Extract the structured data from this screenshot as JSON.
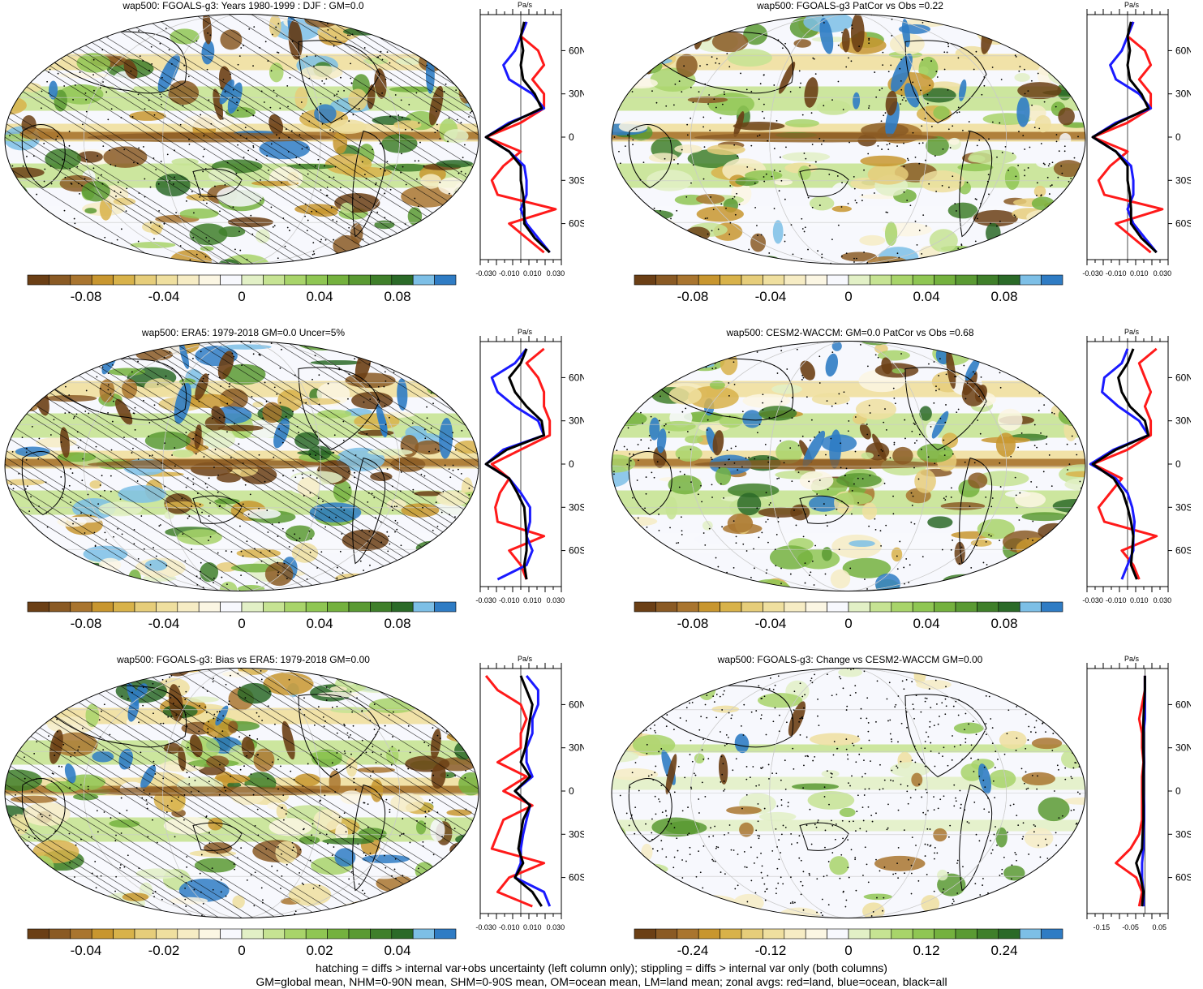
{
  "palette": [
    "#6b3f15",
    "#8a5a24",
    "#a9752f",
    "#c8962f",
    "#d8b24a",
    "#e6cd7a",
    "#efdf9f",
    "#f6ecc4",
    "#fbf6e3",
    "#f7f8fd",
    "#e2f0c6",
    "#c6e393",
    "#a8d46a",
    "#8fc653",
    "#74b13e",
    "#5a9a33",
    "#3f7f2a",
    "#2b6a28",
    "#7dbfe6",
    "#2f7cc4"
  ],
  "footer": {
    "line1": "hatching = diffs > internal var+obs uncertainty (left column only); stippling = diffs > internal var only (both columns)",
    "line2": "GM=global mean, NHM=0-90N mean, SHM=0-90S mean, OM=ocean mean, LM=land mean; zonal avgs: red=land, blue=ocean, black=all"
  },
  "panels": [
    {
      "title": "wap500: FGOALS-g3: Years 1980-1999 : DJF : GM=0.0",
      "colorbar_ticks": [
        "-0.08",
        "-0.04",
        "0",
        "0.04",
        "0.08"
      ],
      "zonal_unit": "Pa/s",
      "lat_labels": [
        "60N",
        "30N",
        "0",
        "30S",
        "60S"
      ],
      "zonal_x_ticks": [
        "-0.030",
        "-0.010",
        "0.010",
        "0.030"
      ],
      "hatching": true,
      "stippling": true
    },
    {
      "title": "wap500: FGOALS-g3 PatCor vs Obs =0.22",
      "colorbar_ticks": [
        "-0.08",
        "-0.04",
        "0",
        "0.04",
        "0.08"
      ],
      "zonal_unit": "Pa/s",
      "lat_labels": [
        "60N",
        "30N",
        "0",
        "30S",
        "60S"
      ],
      "zonal_x_ticks": [
        "-0.030",
        "-0.010",
        "0.010",
        "0.030"
      ],
      "hatching": false,
      "stippling": true
    },
    {
      "title": "wap500: ERA5: 1979-2018 GM=0.0 Uncer=5%",
      "colorbar_ticks": [
        "-0.08",
        "-0.04",
        "0",
        "0.04",
        "0.08"
      ],
      "zonal_unit": "Pa/s",
      "lat_labels": [
        "60N",
        "30N",
        "0",
        "30S",
        "60S"
      ],
      "zonal_x_ticks": [
        "-0.030",
        "-0.010",
        "0.010",
        "0.030"
      ],
      "hatching": true,
      "stippling": true
    },
    {
      "title": "wap500: CESM2-WACCM: GM=0.0 PatCor vs Obs =0.68",
      "colorbar_ticks": [
        "-0.08",
        "-0.04",
        "0",
        "0.04",
        "0.08"
      ],
      "zonal_unit": "Pa/s",
      "lat_labels": [
        "60N",
        "30N",
        "0",
        "30S",
        "60S"
      ],
      "zonal_x_ticks": [
        "-0.030",
        "-0.010",
        "0.010",
        "0.030"
      ],
      "hatching": false,
      "stippling": true
    },
    {
      "title": "wap500: FGOALS-g3: Bias vs ERA5: 1979-2018 GM=0.00",
      "colorbar_ticks": [
        "-0.04",
        "-0.02",
        "0",
        "0.02",
        "0.04"
      ],
      "zonal_unit": "Pa/s",
      "lat_labels": [
        "60N",
        "30N",
        "0",
        "30S",
        "60S"
      ],
      "zonal_x_ticks": [
        "-0.030",
        "-0.010",
        "0.010",
        "0.030"
      ],
      "hatching": true,
      "stippling": true
    },
    {
      "title": "wap500: FGOALS-g3: Change vs CESM2-WACCM GM=0.00",
      "colorbar_ticks": [
        "-0.24",
        "-0.12",
        "0",
        "0.12",
        "0.24"
      ],
      "zonal_unit": "Pa/s",
      "lat_labels": [
        "60N",
        "30N",
        "0",
        "30S",
        "60S"
      ],
      "zonal_x_ticks": [
        "-0.15",
        "-0.05",
        "0.05"
      ],
      "hatching": false,
      "stippling": true
    }
  ],
  "chart_data": [
    {
      "type": "heatmap",
      "title": "wap500: FGOALS-g3: Years 1980-1999 : DJF : GM=0.0",
      "colorbar": {
        "ticks": [
          -0.08,
          -0.04,
          0,
          0.04,
          0.08
        ],
        "range": [
          -0.11,
          0.11
        ]
      },
      "zonal": {
        "unit": "Pa/s",
        "xlim": [
          -0.035,
          0.035
        ],
        "lat": [
          -80,
          -70,
          -60,
          -50,
          -40,
          -30,
          -20,
          -10,
          0,
          10,
          20,
          30,
          40,
          50,
          60,
          70,
          80
        ],
        "land": [
          0.02,
          0.005,
          -0.01,
          0.03,
          -0.02,
          -0.025,
          -0.015,
          0.0,
          -0.03,
          0.0,
          0.02,
          0.02,
          0.01,
          0.02,
          0.015,
          0.0,
          0.005
        ],
        "ocean": [
          0.025,
          0.015,
          0.005,
          0.0,
          0.005,
          0.005,
          0.003,
          -0.01,
          -0.03,
          -0.01,
          0.02,
          0.01,
          -0.01,
          -0.015,
          -0.005,
          0.0,
          0.005
        ],
        "all": [
          0.025,
          0.012,
          0.003,
          0.003,
          0.002,
          0.0,
          0.0,
          -0.01,
          -0.03,
          -0.008,
          0.018,
          0.012,
          0.002,
          0.0,
          0.002,
          0.0,
          0.003
        ]
      }
    },
    {
      "type": "heatmap",
      "title": "wap500: FGOALS-g3 PatCor vs Obs =0.22",
      "colorbar": {
        "ticks": [
          -0.08,
          -0.04,
          0,
          0.04,
          0.08
        ],
        "range": [
          -0.11,
          0.11
        ]
      },
      "zonal": {
        "unit": "Pa/s",
        "xlim": [
          -0.035,
          0.035
        ],
        "lat": [
          -80,
          -70,
          -60,
          -50,
          -40,
          -30,
          -20,
          -10,
          0,
          10,
          20,
          30,
          40,
          50,
          60,
          70,
          80
        ],
        "land": [
          0.02,
          0.005,
          -0.01,
          0.03,
          -0.02,
          -0.025,
          -0.015,
          0.0,
          -0.03,
          0.0,
          0.02,
          0.02,
          0.01,
          0.02,
          0.015,
          0.0,
          0.005
        ],
        "ocean": [
          0.025,
          0.015,
          0.005,
          0.0,
          0.005,
          0.005,
          0.003,
          -0.01,
          -0.03,
          -0.01,
          0.02,
          0.01,
          -0.01,
          -0.015,
          -0.005,
          0.0,
          0.005
        ],
        "all": [
          0.025,
          0.012,
          0.003,
          0.003,
          0.002,
          0.0,
          0.0,
          -0.01,
          -0.03,
          -0.008,
          0.018,
          0.012,
          0.002,
          0.0,
          0.002,
          0.0,
          0.003
        ]
      }
    },
    {
      "type": "heatmap",
      "title": "wap500: ERA5: 1979-2018 GM=0.0 Uncer=5%",
      "colorbar": {
        "ticks": [
          -0.08,
          -0.04,
          0,
          0.04,
          0.08
        ],
        "range": [
          -0.11,
          0.11
        ]
      },
      "zonal": {
        "unit": "Pa/s",
        "xlim": [
          -0.035,
          0.035
        ],
        "lat": [
          -80,
          -70,
          -60,
          -50,
          -40,
          -30,
          -20,
          -10,
          0,
          10,
          20,
          30,
          40,
          50,
          60,
          70,
          80
        ],
        "land": [
          0.005,
          0.0,
          -0.01,
          0.02,
          -0.02,
          -0.022,
          -0.018,
          -0.01,
          -0.025,
          0.0,
          0.025,
          0.025,
          0.02,
          0.02,
          0.015,
          0.005,
          0.02
        ],
        "ocean": [
          -0.02,
          0.005,
          0.01,
          0.005,
          0.008,
          0.008,
          0.0,
          -0.01,
          -0.03,
          -0.015,
          0.02,
          0.015,
          -0.005,
          -0.02,
          -0.025,
          -0.005,
          0.005
        ],
        "all": [
          0.005,
          0.003,
          0.005,
          0.005,
          0.004,
          0.003,
          -0.003,
          -0.01,
          -0.03,
          -0.012,
          0.02,
          0.018,
          0.005,
          -0.005,
          -0.01,
          0.0,
          0.005
        ]
      }
    },
    {
      "type": "heatmap",
      "title": "wap500: CESM2-WACCM: GM=0.0 PatCor vs Obs =0.68",
      "colorbar": {
        "ticks": [
          -0.08,
          -0.04,
          0,
          0.04,
          0.08
        ],
        "range": [
          -0.11,
          0.11
        ]
      },
      "zonal": {
        "unit": "Pa/s",
        "xlim": [
          -0.035,
          0.035
        ],
        "lat": [
          -80,
          -70,
          -60,
          -50,
          -40,
          -30,
          -20,
          -10,
          0,
          10,
          20,
          30,
          40,
          50,
          60,
          70,
          80
        ],
        "land": [
          0.01,
          0.005,
          -0.005,
          0.025,
          -0.02,
          -0.025,
          -0.015,
          -0.005,
          -0.03,
          0.0,
          0.02,
          0.02,
          0.015,
          0.02,
          0.015,
          0.01,
          0.025
        ],
        "ocean": [
          -0.005,
          0.0,
          0.005,
          0.005,
          0.006,
          0.004,
          0.0,
          -0.01,
          -0.032,
          -0.012,
          0.018,
          0.01,
          -0.008,
          -0.022,
          -0.02,
          -0.005,
          0.0
        ],
        "all": [
          0.008,
          0.003,
          0.004,
          0.005,
          0.003,
          0.0,
          -0.004,
          -0.012,
          -0.03,
          -0.01,
          0.018,
          0.015,
          0.002,
          -0.005,
          -0.008,
          0.0,
          0.005
        ]
      }
    },
    {
      "type": "heatmap",
      "title": "wap500: FGOALS-g3: Bias vs ERA5: 1979-2018 GM=0.00",
      "colorbar": {
        "ticks": [
          -0.04,
          -0.02,
          0,
          0.02,
          0.04
        ],
        "range": [
          -0.055,
          0.055
        ]
      },
      "zonal": {
        "unit": "Pa/s",
        "xlim": [
          -0.035,
          0.035
        ],
        "lat": [
          -80,
          -70,
          -60,
          -50,
          -40,
          -30,
          -20,
          -10,
          0,
          10,
          20,
          30,
          40,
          50,
          60,
          70,
          80
        ],
        "land": [
          0.01,
          -0.02,
          -0.01,
          0.02,
          -0.025,
          -0.02,
          -0.015,
          0.01,
          -0.015,
          0.005,
          -0.02,
          0.0,
          0.0,
          0.005,
          0.0,
          -0.02,
          -0.03
        ],
        "ocean": [
          0.025,
          0.02,
          -0.005,
          0.0,
          0.0,
          0.002,
          0.005,
          0.008,
          -0.005,
          0.01,
          0.005,
          0.005,
          0.01,
          0.01,
          0.015,
          0.015,
          0.005
        ],
        "all": [
          0.018,
          0.01,
          -0.005,
          0.002,
          -0.002,
          0.0,
          0.002,
          0.008,
          -0.005,
          0.008,
          0.0,
          0.004,
          0.006,
          0.008,
          0.01,
          0.005,
          0.0
        ]
      }
    },
    {
      "type": "heatmap",
      "title": "wap500: FGOALS-g3: Change vs CESM2-WACCM GM=0.00",
      "colorbar": {
        "ticks": [
          -0.24,
          -0.12,
          0,
          0.12,
          0.24
        ],
        "range": [
          -0.33,
          0.33
        ]
      },
      "zonal": {
        "unit": "Pa/s",
        "xlim": [
          -0.2,
          0.08
        ],
        "lat": [
          -80,
          -70,
          -60,
          -50,
          -40,
          -30,
          -20,
          -10,
          0,
          10,
          20,
          30,
          40,
          50,
          60,
          70,
          80
        ],
        "land": [
          -0.02,
          -0.01,
          -0.03,
          -0.1,
          -0.05,
          -0.02,
          -0.01,
          -0.01,
          -0.01,
          -0.01,
          -0.005,
          -0.01,
          -0.01,
          -0.02,
          -0.01,
          0.0,
          0.0
        ],
        "ocean": [
          -0.005,
          -0.005,
          -0.01,
          -0.01,
          -0.005,
          -0.005,
          -0.003,
          -0.003,
          -0.005,
          -0.005,
          -0.003,
          -0.005,
          -0.005,
          0.0,
          0.0,
          0.0,
          0.0
        ],
        "all": [
          -0.01,
          -0.005,
          -0.015,
          -0.03,
          -0.01,
          -0.008,
          -0.005,
          -0.005,
          -0.006,
          -0.006,
          -0.004,
          -0.006,
          -0.006,
          -0.005,
          -0.003,
          0.0,
          0.0
        ]
      }
    }
  ]
}
